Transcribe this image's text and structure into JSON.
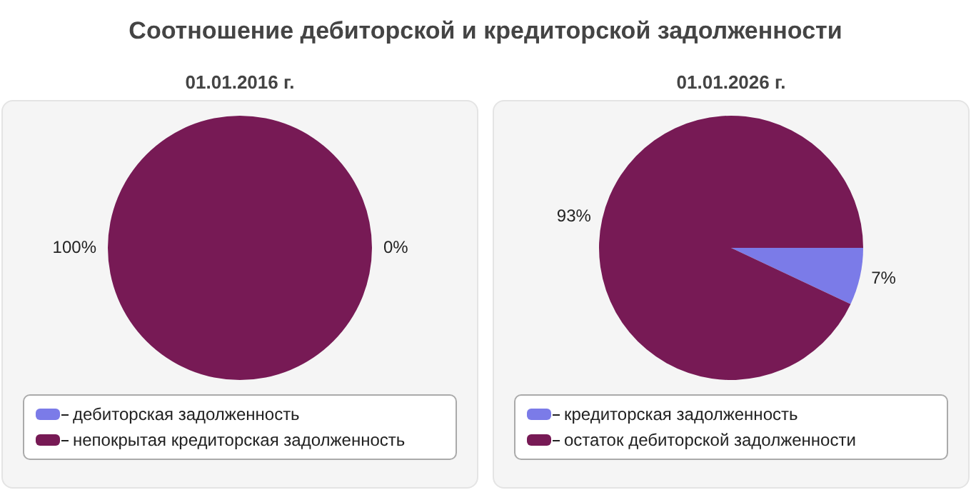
{
  "chart_data": [
    {
      "type": "pie",
      "title": "Соотношение дебиторской и кредиторской задолженности",
      "subtitle": "01.01.2016 г.",
      "categories": [
        "дебиторская задолженность",
        "непокрытая кредиторская задолженность"
      ],
      "values": [
        0,
        100
      ],
      "value_labels": [
        "0%",
        "100%"
      ],
      "colors": [
        "#7b7be8",
        "#771a55"
      ],
      "legend": "bottom"
    },
    {
      "type": "pie",
      "subtitle": "01.01.2026 г.",
      "categories": [
        "кредиторская задолженность",
        "остаток дебиторской задолженности"
      ],
      "values": [
        7,
        93
      ],
      "value_labels": [
        "7%",
        "93%"
      ],
      "colors": [
        "#7b7be8",
        "#771a55"
      ],
      "legend": "bottom"
    }
  ]
}
